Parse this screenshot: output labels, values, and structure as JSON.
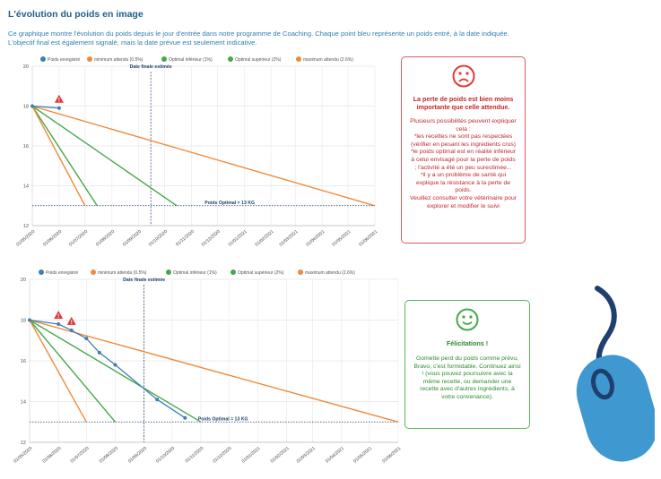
{
  "page": {
    "title": "L'évolution du poids en image",
    "intro": "Ce graphique montre l'évolution du poids depuis le jour d'entrée dans notre programme de Coaching. Chaque point bleu représente un poids entré, à la date indiquée. L'objectif final est également signalé, mais la date prévue est seulement indicative."
  },
  "colors": {
    "blue": "#3d7fb5",
    "orange": "#ef8a3a",
    "green": "#46a84a",
    "alert": "#e03a3a",
    "dark_line": "#1f3f6e"
  },
  "legend_labels": [
    "Poids enregistré",
    "minimum attendu (0.5%)",
    "Optimal inférieur (1%)",
    "Optimal supérieur (2%)",
    "maximum attendu (2.6%)"
  ],
  "chart_data": [
    {
      "type": "line",
      "xlabel": "",
      "ylabel": "",
      "ylim": [
        12,
        20
      ],
      "yticks": [
        12,
        14,
        16,
        18,
        20
      ],
      "x_tick_labels": [
        "01/05/2020",
        "01/06/2020",
        "01/07/2020",
        "01/08/2020",
        "01/09/2020",
        "01/10/2020",
        "01/11/2020",
        "01/12/2020",
        "01/01/2021",
        "01/02/2021",
        "01/03/2021",
        "01/04/2021",
        "01/05/2021",
        "01/06/2021"
      ],
      "annotations": {
        "target_date_label": "Date finale estimée",
        "target_date": "15/09/2020",
        "optimal_label": "Poids Optimal = 13 KG",
        "optimal_value": 13
      },
      "series": [
        {
          "name": "Poids enregistré",
          "color": "#3d7fb5",
          "points": [
            [
              "01/05/2020",
              18
            ],
            [
              "01/06/2020",
              17.9
            ]
          ]
        },
        {
          "name": "minimum attendu (0.5%)",
          "color": "#ef8a3a",
          "points": [
            [
              "01/05/2020",
              18
            ],
            [
              "01/06/2021",
              13
            ]
          ]
        },
        {
          "name": "Optimal inférieur (1%)",
          "color": "#46a84a",
          "points": [
            [
              "01/05/2020",
              18
            ],
            [
              "15/10/2020",
              13
            ]
          ]
        },
        {
          "name": "Optimal supérieur (2%)",
          "color": "#46a84a",
          "points": [
            [
              "01/05/2020",
              18
            ],
            [
              "15/07/2020",
              13
            ]
          ]
        },
        {
          "name": "maximum attendu (2.6%)",
          "color": "#ef8a3a",
          "points": [
            [
              "01/05/2020",
              18
            ],
            [
              "01/07/2020",
              13
            ]
          ]
        }
      ],
      "alerts": [
        [
          "01/06/2020",
          17.9
        ]
      ]
    },
    {
      "type": "line",
      "xlabel": "",
      "ylabel": "",
      "ylim": [
        12,
        20
      ],
      "yticks": [
        12,
        14,
        16,
        18,
        20
      ],
      "x_tick_labels": [
        "01/05/2020",
        "01/06/2020",
        "01/07/2020",
        "01/08/2020",
        "01/09/2020",
        "01/10/2020",
        "01/11/2020",
        "01/12/2020",
        "01/01/2021",
        "01/02/2021",
        "01/03/2021",
        "01/04/2021",
        "01/05/2021",
        "01/06/2021"
      ],
      "annotations": {
        "target_date_label": "Date finale estimée",
        "target_date": "01/09/2020",
        "optimal_label": "Poids Optimal = 13 KG",
        "optimal_value": 13
      },
      "series": [
        {
          "name": "Poids enregistré",
          "color": "#3d7fb5",
          "points": [
            [
              "01/05/2020",
              18
            ],
            [
              "01/06/2020",
              17.8
            ],
            [
              "15/06/2020",
              17.5
            ],
            [
              "01/07/2020",
              17.1
            ],
            [
              "15/07/2020",
              16.4
            ],
            [
              "01/08/2020",
              15.8
            ],
            [
              "15/09/2020",
              14.1
            ],
            [
              "15/10/2020",
              13.2
            ]
          ]
        },
        {
          "name": "minimum attendu (0.5%)",
          "color": "#ef8a3a",
          "points": [
            [
              "01/05/2020",
              18
            ],
            [
              "01/06/2021",
              13
            ]
          ]
        },
        {
          "name": "Optimal inférieur (1%)",
          "color": "#46a84a",
          "points": [
            [
              "01/05/2020",
              18
            ],
            [
              "01/11/2020",
              13
            ]
          ]
        },
        {
          "name": "Optimal supérieur (2%)",
          "color": "#46a84a",
          "points": [
            [
              "01/05/2020",
              18
            ],
            [
              "01/08/2020",
              13
            ]
          ]
        },
        {
          "name": "maximum attendu (2.6%)",
          "color": "#ef8a3a",
          "points": [
            [
              "01/05/2020",
              18
            ],
            [
              "01/07/2020",
              13
            ]
          ]
        }
      ],
      "alerts": [
        [
          "01/06/2020",
          17.8
        ],
        [
          "15/06/2020",
          17.5
        ]
      ]
    }
  ],
  "messages": {
    "bad": {
      "title": "La perte de poids est bien moins importante que celle attendue.",
      "body": "Plusieurs possibilités peuvent expliquer cela :\n*les recettes ne sont pas respectées (vérifier en pesant les ingrédients crus)\n*le poids optimal est en réalité inférieur à celui envisagé pour la perte de poids ; l'activité a été un peu surestimée...\n*il y a un problème de santé qui explique la résistance à la perte de poids.\nVeuillez consulter votre vétérinaire pour explorer et modifier le suivi"
    },
    "good": {
      "title": "Félicitations !",
      "body": "Gomette perd du poids comme prévu, Bravo, c'est formidable. Continuez ainsi ! (vous pouvez poursuivre avec la même recette, ou demander une recette avec d'autres ingrédients, à votre convenance)."
    }
  },
  "decoration": {
    "mouse": "computer-mouse-icon"
  }
}
